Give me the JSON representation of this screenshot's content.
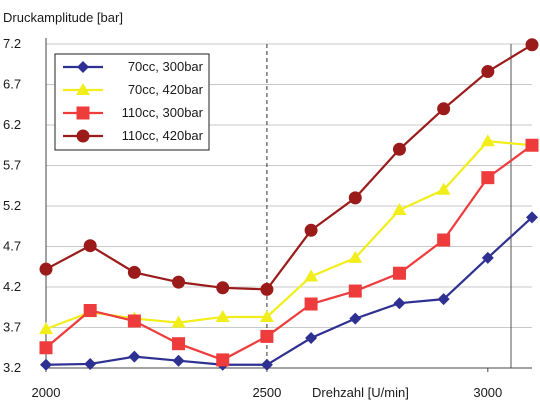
{
  "chart_data": {
    "type": "line",
    "ylabel": "Druckamplitude [bar]",
    "xlabel": "Drehzahl [U/min]",
    "xlim": [
      2000,
      3100
    ],
    "ylim": [
      3.2,
      7.2
    ],
    "x_ticks": [
      "2000",
      "2500",
      "3000"
    ],
    "x_tick_values": [
      2000,
      2500,
      3000
    ],
    "y_ticks": [
      "7.2",
      "6.7",
      "6.2",
      "5.7",
      "5.2",
      "4.7",
      "4.2",
      "3.7",
      "3.2"
    ],
    "y_tick_values": [
      7.2,
      6.7,
      6.2,
      5.7,
      5.2,
      4.7,
      4.2,
      3.7,
      3.2
    ],
    "reference_line_x": 2500,
    "grid": "horizontal",
    "legend_position": "top-left",
    "x": [
      2000,
      2100,
      2200,
      2300,
      2400,
      2500,
      2600,
      2700,
      2800,
      2900,
      3000,
      3100
    ],
    "series": [
      {
        "name": "70cc, 300bar",
        "color": "#2e3192",
        "marker": "diamond",
        "values": [
          3.24,
          3.25,
          3.34,
          3.29,
          3.24,
          3.24,
          3.57,
          3.81,
          4.0,
          4.05,
          4.56,
          5.06
        ]
      },
      {
        "name": "70cc, 420bar",
        "color": "#f2ee1b",
        "marker": "triangle",
        "values": [
          3.68,
          3.89,
          3.81,
          3.76,
          3.83,
          3.83,
          4.33,
          4.56,
          5.15,
          5.4,
          6.0,
          5.95
        ]
      },
      {
        "name": "110cc, 300bar",
        "color": "#ee3b3b",
        "marker": "square",
        "values": [
          3.45,
          3.91,
          3.78,
          3.5,
          3.3,
          3.59,
          3.99,
          4.15,
          4.37,
          4.78,
          5.55,
          5.95
        ]
      },
      {
        "name": "110cc, 420bar",
        "color": "#9b1b1b",
        "marker": "circle",
        "values": [
          4.42,
          4.71,
          4.38,
          4.26,
          4.19,
          4.17,
          4.9,
          5.3,
          5.9,
          6.4,
          6.86,
          7.19
        ]
      }
    ]
  }
}
